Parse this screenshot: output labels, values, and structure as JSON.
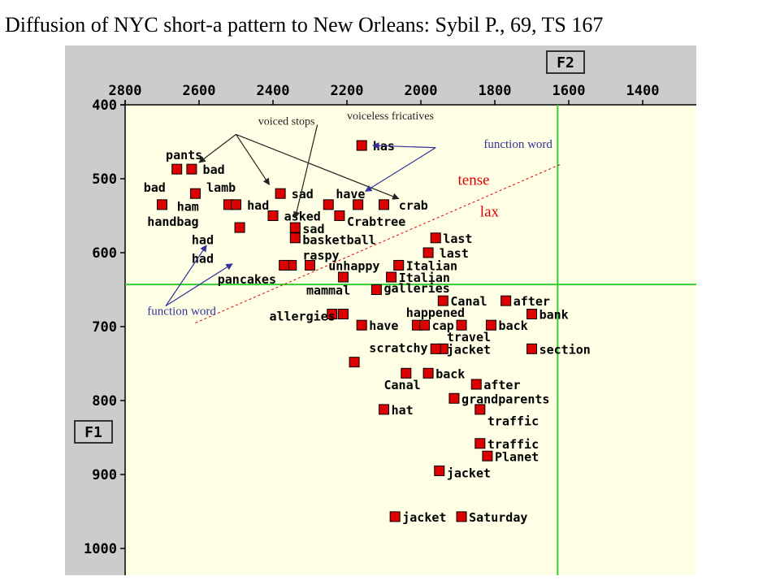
{
  "title": "Diffusion of NYC short-a pattern to New Orleans: Sybil P., 69, TS 167",
  "colors": {
    "frame": "#cccccc",
    "plot_bg": "#ffffe6",
    "marker": "#dd0000",
    "guide_line": "#33cc33",
    "tense_lax_line": "#dd0000",
    "annotation_text": "#333399",
    "category_label": "#222222",
    "tense_lax_text": "#dd0000"
  },
  "chart_data": {
    "type": "scatter",
    "x_axis_label": "F2",
    "y_axis_label": "F1",
    "x_reversed": true,
    "y_reversed": true,
    "xlim": [
      1300,
      2950
    ],
    "ylim": [
      1040,
      400
    ],
    "x_ticks": [
      2800,
      2600,
      2400,
      2200,
      2000,
      1800,
      1600,
      1400
    ],
    "y_ticks": [
      400,
      500,
      600,
      700,
      800,
      900,
      1000
    ],
    "guide_lines": {
      "F2": 1630,
      "F1": 643
    },
    "tense_lax_boundary": [
      [
        2610,
        695
      ],
      [
        1620,
        480
      ]
    ],
    "points": [
      {
        "x": 2160,
        "y": 455
      },
      {
        "x": 2660,
        "y": 487
      },
      {
        "x": 2620,
        "y": 487
      },
      {
        "x": 2610,
        "y": 520
      },
      {
        "x": 2700,
        "y": 535
      },
      {
        "x": 2520,
        "y": 535
      },
      {
        "x": 2500,
        "y": 535
      },
      {
        "x": 2380,
        "y": 520
      },
      {
        "x": 2250,
        "y": 535
      },
      {
        "x": 2170,
        "y": 535
      },
      {
        "x": 2100,
        "y": 535
      },
      {
        "x": 2220,
        "y": 550
      },
      {
        "x": 2400,
        "y": 550
      },
      {
        "x": 2490,
        "y": 566
      },
      {
        "x": 2340,
        "y": 566
      },
      {
        "x": 2340,
        "y": 580
      },
      {
        "x": 1960,
        "y": 580
      },
      {
        "x": 2350,
        "y": 617
      },
      {
        "x": 2370,
        "y": 617
      },
      {
        "x": 2300,
        "y": 617
      },
      {
        "x": 1980,
        "y": 600
      },
      {
        "x": 2060,
        "y": 617
      },
      {
        "x": 2080,
        "y": 633
      },
      {
        "x": 2210,
        "y": 633
      },
      {
        "x": 2120,
        "y": 650
      },
      {
        "x": 1940,
        "y": 665
      },
      {
        "x": 1770,
        "y": 665
      },
      {
        "x": 2240,
        "y": 683
      },
      {
        "x": 2210,
        "y": 683
      },
      {
        "x": 1700,
        "y": 683
      },
      {
        "x": 2160,
        "y": 698
      },
      {
        "x": 2010,
        "y": 698
      },
      {
        "x": 1890,
        "y": 698
      },
      {
        "x": 1990,
        "y": 698
      },
      {
        "x": 1810,
        "y": 698
      },
      {
        "x": 1940,
        "y": 730
      },
      {
        "x": 1960,
        "y": 730
      },
      {
        "x": 1700,
        "y": 730
      },
      {
        "x": 2180,
        "y": 748
      },
      {
        "x": 2040,
        "y": 763
      },
      {
        "x": 1980,
        "y": 763
      },
      {
        "x": 1850,
        "y": 778
      },
      {
        "x": 1910,
        "y": 797
      },
      {
        "x": 2100,
        "y": 812
      },
      {
        "x": 1840,
        "y": 812
      },
      {
        "x": 1840,
        "y": 858
      },
      {
        "x": 1820,
        "y": 875
      },
      {
        "x": 1950,
        "y": 895
      },
      {
        "x": 2070,
        "y": 957
      },
      {
        "x": 1890,
        "y": 957
      }
    ],
    "word_labels": [
      {
        "text": "has",
        "x": 2130,
        "y": 455
      },
      {
        "text": "pants",
        "x": 2690,
        "y": 467
      },
      {
        "text": "bad",
        "x": 2590,
        "y": 487
      },
      {
        "text": "bad",
        "x": 2750,
        "y": 511
      },
      {
        "text": "lamb",
        "x": 2580,
        "y": 511
      },
      {
        "text": "ham",
        "x": 2660,
        "y": 537
      },
      {
        "text": "had",
        "x": 2470,
        "y": 535
      },
      {
        "text": "sad",
        "x": 2350,
        "y": 520
      },
      {
        "text": "have",
        "x": 2230,
        "y": 520
      },
      {
        "text": "crab",
        "x": 2060,
        "y": 535
      },
      {
        "text": "handbag",
        "x": 2740,
        "y": 557
      },
      {
        "text": "asked",
        "x": 2370,
        "y": 550
      },
      {
        "text": "Crabtree",
        "x": 2200,
        "y": 557
      },
      {
        "text": "sad",
        "x": 2320,
        "y": 567
      },
      {
        "text": "basketball",
        "x": 2320,
        "y": 582
      },
      {
        "text": "had",
        "x": 2620,
        "y": 582
      },
      {
        "text": "last",
        "x": 1940,
        "y": 580
      },
      {
        "text": "last",
        "x": 1950,
        "y": 600
      },
      {
        "text": "raspy",
        "x": 2320,
        "y": 603
      },
      {
        "text": "had",
        "x": 2620,
        "y": 607
      },
      {
        "text": "unhappy",
        "x": 2250,
        "y": 617
      },
      {
        "text": "Italian",
        "x": 2040,
        "y": 617
      },
      {
        "text": "Italian",
        "x": 2060,
        "y": 633
      },
      {
        "text": "pancakes",
        "x": 2550,
        "y": 635
      },
      {
        "text": "mammal",
        "x": 2310,
        "y": 650
      },
      {
        "text": "galleries",
        "x": 2100,
        "y": 647
      },
      {
        "text": "Canal",
        "x": 1920,
        "y": 665
      },
      {
        "text": "after",
        "x": 1750,
        "y": 665
      },
      {
        "text": "happened",
        "x": 2040,
        "y": 680
      },
      {
        "text": "bank",
        "x": 1680,
        "y": 683
      },
      {
        "text": "allergies",
        "x": 2410,
        "y": 685
      },
      {
        "text": "have",
        "x": 2140,
        "y": 698
      },
      {
        "text": "cap",
        "x": 1970,
        "y": 698
      },
      {
        "text": "back",
        "x": 1790,
        "y": 698
      },
      {
        "text": "travel",
        "x": 1930,
        "y": 713
      },
      {
        "text": "scratchy",
        "x": 2140,
        "y": 728
      },
      {
        "text": "jacket",
        "x": 1930,
        "y": 730
      },
      {
        "text": "section",
        "x": 1680,
        "y": 730
      },
      {
        "text": "back",
        "x": 1960,
        "y": 763
      },
      {
        "text": "after",
        "x": 1830,
        "y": 778
      },
      {
        "text": "Canal",
        "x": 2100,
        "y": 778
      },
      {
        "text": "grandparents",
        "x": 1890,
        "y": 797
      },
      {
        "text": "hat",
        "x": 2080,
        "y": 812
      },
      {
        "text": "traffic",
        "x": 1820,
        "y": 827
      },
      {
        "text": "traffic",
        "x": 1820,
        "y": 858
      },
      {
        "text": "Planet",
        "x": 1800,
        "y": 875
      },
      {
        "text": "jacket",
        "x": 1930,
        "y": 897
      },
      {
        "text": "jacket",
        "x": 2050,
        "y": 957
      },
      {
        "text": "Saturday",
        "x": 1870,
        "y": 957
      }
    ],
    "annotations": [
      {
        "text": "voiced stops",
        "x": 2440,
        "y": 427,
        "color": "category_label",
        "size": 14
      },
      {
        "text": "voiceless fricatives",
        "x": 2200,
        "y": 420,
        "color": "category_label",
        "size": 14
      },
      {
        "text": "function word",
        "x": 1830,
        "y": 458,
        "color": "annotation_text",
        "size": 15
      },
      {
        "text": "tense",
        "x": 1900,
        "y": 508,
        "color": "tense_lax_text",
        "size": 19
      },
      {
        "text": "lax",
        "x": 1840,
        "y": 551,
        "color": "tense_lax_text",
        "size": 19
      },
      {
        "text": "function word",
        "x": 2740,
        "y": 684,
        "color": "annotation_text",
        "size": 15
      }
    ],
    "arrows": [
      {
        "from": [
          2500,
          440
        ],
        "to": [
          2600,
          478
        ],
        "color": "category_label"
      },
      {
        "from": [
          2500,
          440
        ],
        "to": [
          2410,
          508
        ],
        "color": "category_label"
      },
      {
        "from": [
          2500,
          440
        ],
        "to": [
          2060,
          527
        ],
        "color": "category_label"
      },
      {
        "from": [
          2280,
          427
        ],
        "to": [
          2340,
          553
        ],
        "color": "category_label"
      },
      {
        "from": [
          1960,
          458
        ],
        "to": [
          2130,
          455
        ],
        "color": "annotation_text"
      },
      {
        "from": [
          1960,
          458
        ],
        "to": [
          2150,
          517
        ],
        "color": "annotation_text"
      },
      {
        "from": [
          2690,
          672
        ],
        "to": [
          2580,
          590
        ],
        "color": "annotation_text"
      },
      {
        "from": [
          2690,
          672
        ],
        "to": [
          2510,
          615
        ],
        "color": "annotation_text"
      }
    ]
  }
}
